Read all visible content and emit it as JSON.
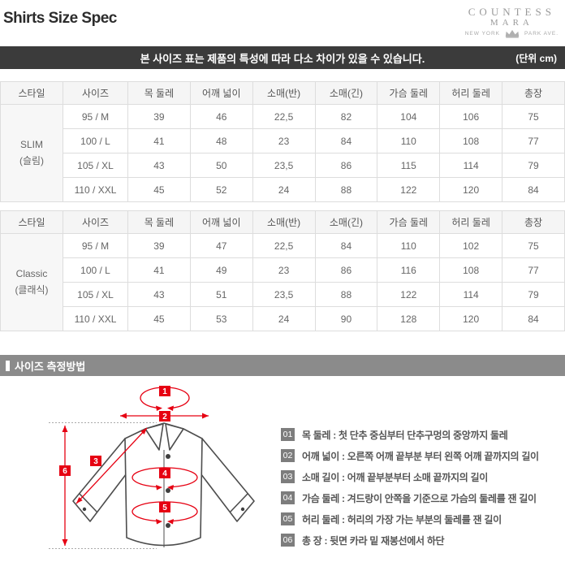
{
  "page": {
    "title": "Shirts Size Spec"
  },
  "logo": {
    "line1": "COUNTESS",
    "line2": "MARA",
    "left": "NEW YORK",
    "right": "PARK AVE."
  },
  "notice": {
    "text": "본 사이즈 표는 제품의 특성에 따라 다소 차이가 있을 수 있습니다.",
    "unit": "(단위 cm)"
  },
  "size_tables": [
    {
      "headers": [
        "스타일",
        "사이즈",
        "목 둘레",
        "어깨 넓이",
        "소매(반)",
        "소매(긴)",
        "가슴 둘레",
        "허리 둘레",
        "총장"
      ],
      "style_en": "SLIM",
      "style_ko": "(슬림)",
      "rows": [
        {
          "size": "95 / M",
          "values": [
            "39",
            "46",
            "22,5",
            "82",
            "104",
            "106",
            "75"
          ]
        },
        {
          "size": "100 / L",
          "values": [
            "41",
            "48",
            "23",
            "84",
            "110",
            "108",
            "77"
          ]
        },
        {
          "size": "105 / XL",
          "values": [
            "43",
            "50",
            "23,5",
            "86",
            "115",
            "114",
            "79"
          ]
        },
        {
          "size": "110 / XXL",
          "values": [
            "45",
            "52",
            "24",
            "88",
            "122",
            "120",
            "84"
          ]
        }
      ]
    },
    {
      "headers": [
        "스타일",
        "사이즈",
        "목 둘레",
        "어깨 넓이",
        "소매(반)",
        "소매(긴)",
        "가슴 둘레",
        "허리 둘레",
        "총장"
      ],
      "style_en": "Classic",
      "style_ko": "(클래식)",
      "rows": [
        {
          "size": "95 / M",
          "values": [
            "39",
            "47",
            "22,5",
            "84",
            "110",
            "102",
            "75"
          ]
        },
        {
          "size": "100 / L",
          "values": [
            "41",
            "49",
            "23",
            "86",
            "116",
            "108",
            "77"
          ]
        },
        {
          "size": "105 / XL",
          "values": [
            "43",
            "51",
            "23,5",
            "88",
            "122",
            "114",
            "79"
          ]
        },
        {
          "size": "110 / XXL",
          "values": [
            "45",
            "53",
            "24",
            "90",
            "128",
            "120",
            "84"
          ]
        }
      ]
    }
  ],
  "measure_section": {
    "title": "사이즈 측정방법",
    "items": [
      {
        "num": "01",
        "text": "목 둘레 : 첫 단추 중심부터 단추구멍의 중앙까지 둘레"
      },
      {
        "num": "02",
        "text": "어깨 넓이 : 오른쪽 어깨 끝부분 부터 왼쪽 어깨 끝까지의 길이"
      },
      {
        "num": "03",
        "text": "소매 길이 : 어깨 끝부분부터 소매 끝까지의 길이"
      },
      {
        "num": "04",
        "text": "가슴 둘레 : 겨드랑이 안쪽을 기준으로 가슴의 둘레를 잰 길이"
      },
      {
        "num": "05",
        "text": "허리 둘레 : 허리의 가장 가는 부분의 둘레를 잰 길이"
      },
      {
        "num": "06",
        "text": "총 장 : 뒷면 카라 밑 재봉선에서 하단"
      }
    ],
    "diagram_labels": [
      "1",
      "2",
      "3",
      "4",
      "5",
      "6"
    ]
  },
  "colors": {
    "notice_bar": "#3b3b3b",
    "section_bar": "#8b8b8b",
    "badge_gray": "#7d7d7d",
    "annotation_red": "#e60012"
  }
}
